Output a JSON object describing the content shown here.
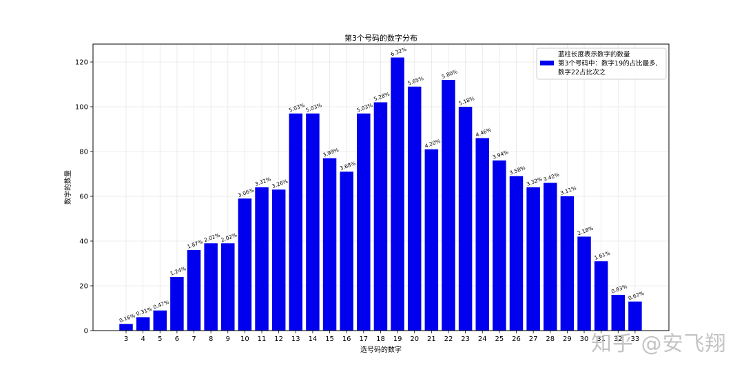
{
  "chart_data": {
    "type": "bar",
    "title": "第3个号码的数字分布",
    "xlabel": "选号码的数字",
    "ylabel": "数字的数量",
    "ylim": [
      0,
      128
    ],
    "yticks": [
      0,
      20,
      40,
      60,
      80,
      100,
      120
    ],
    "grid": true,
    "legend_position": "top-right",
    "bar_color": "#0000ee",
    "categories": [
      "3",
      "4",
      "5",
      "6",
      "7",
      "8",
      "9",
      "10",
      "11",
      "12",
      "13",
      "14",
      "15",
      "16",
      "17",
      "18",
      "19",
      "20",
      "21",
      "22",
      "23",
      "24",
      "25",
      "26",
      "27",
      "28",
      "29",
      "30",
      "31",
      "32",
      "33"
    ],
    "series": [
      {
        "values": [
          3,
          6,
          9,
          24,
          36,
          39,
          39,
          59,
          64,
          63,
          97,
          97,
          77,
          71,
          97,
          102,
          122,
          109,
          81,
          112,
          100,
          86,
          76,
          69,
          64,
          66,
          60,
          42,
          31,
          16,
          13
        ]
      }
    ],
    "data_labels": [
      "0.16%",
      "0.31%",
      "0.47%",
      "1.24%",
      "1.87%",
      "2.02%",
      "2.02%",
      "3.06%",
      "3.32%",
      "3.26%",
      "5.03%",
      "5.03%",
      "3.99%",
      "3.68%",
      "5.03%",
      "5.28%",
      "6.32%",
      "5.65%",
      "4.20%",
      "5.80%",
      "5.18%",
      "4.46%",
      "3.94%",
      "3.58%",
      "3.32%",
      "3.42%",
      "3.11%",
      "2.18%",
      "1.61%",
      "0.83%",
      "0.67%"
    ],
    "legend": {
      "lines": [
        "蓝柱长度表示数字的数量",
        "第3个号码中：数字19的占比最多,",
        "数字22占比次之"
      ]
    }
  },
  "watermark": "知乎 @安飞翔"
}
